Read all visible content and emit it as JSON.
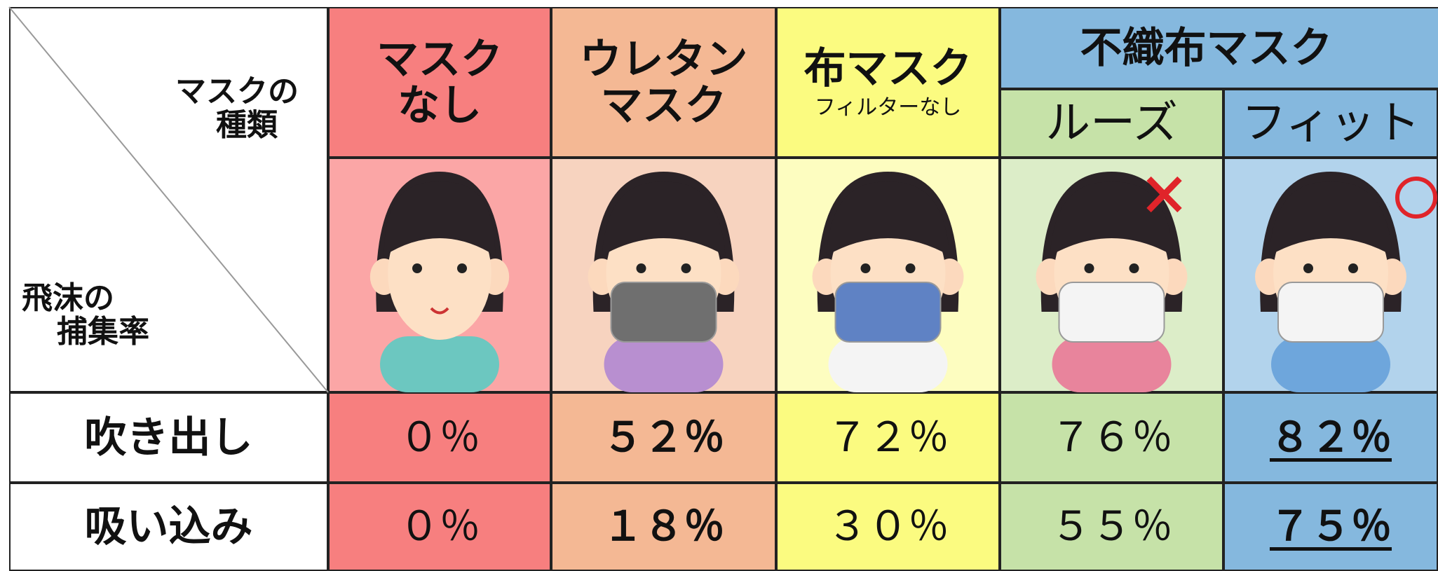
{
  "corner": {
    "type_label_lines": [
      "マスクの",
      "種類"
    ],
    "rate_label_lines": [
      "飛沫の",
      "捕集率"
    ]
  },
  "columns": [
    {
      "title_lines": [
        "マスク",
        "なし"
      ]
    },
    {
      "title_lines": [
        "ウレタン",
        "マスク"
      ]
    },
    {
      "title_lines": [
        "布マスク"
      ],
      "subtitle": "フィルターなし"
    },
    {
      "title_lines": [
        "ルーズ"
      ]
    },
    {
      "title_lines": [
        "フィット"
      ]
    }
  ],
  "nonwoven_group": "不織布マスク",
  "rows": [
    {
      "label": "吹き出し",
      "values": [
        "０％",
        "５２％",
        "７２％",
        "７６％",
        "８２％"
      ]
    },
    {
      "label": "吸い込み",
      "values": [
        "０％",
        "１８％",
        "３０％",
        "５５％",
        "７５％"
      ]
    }
  ]
}
